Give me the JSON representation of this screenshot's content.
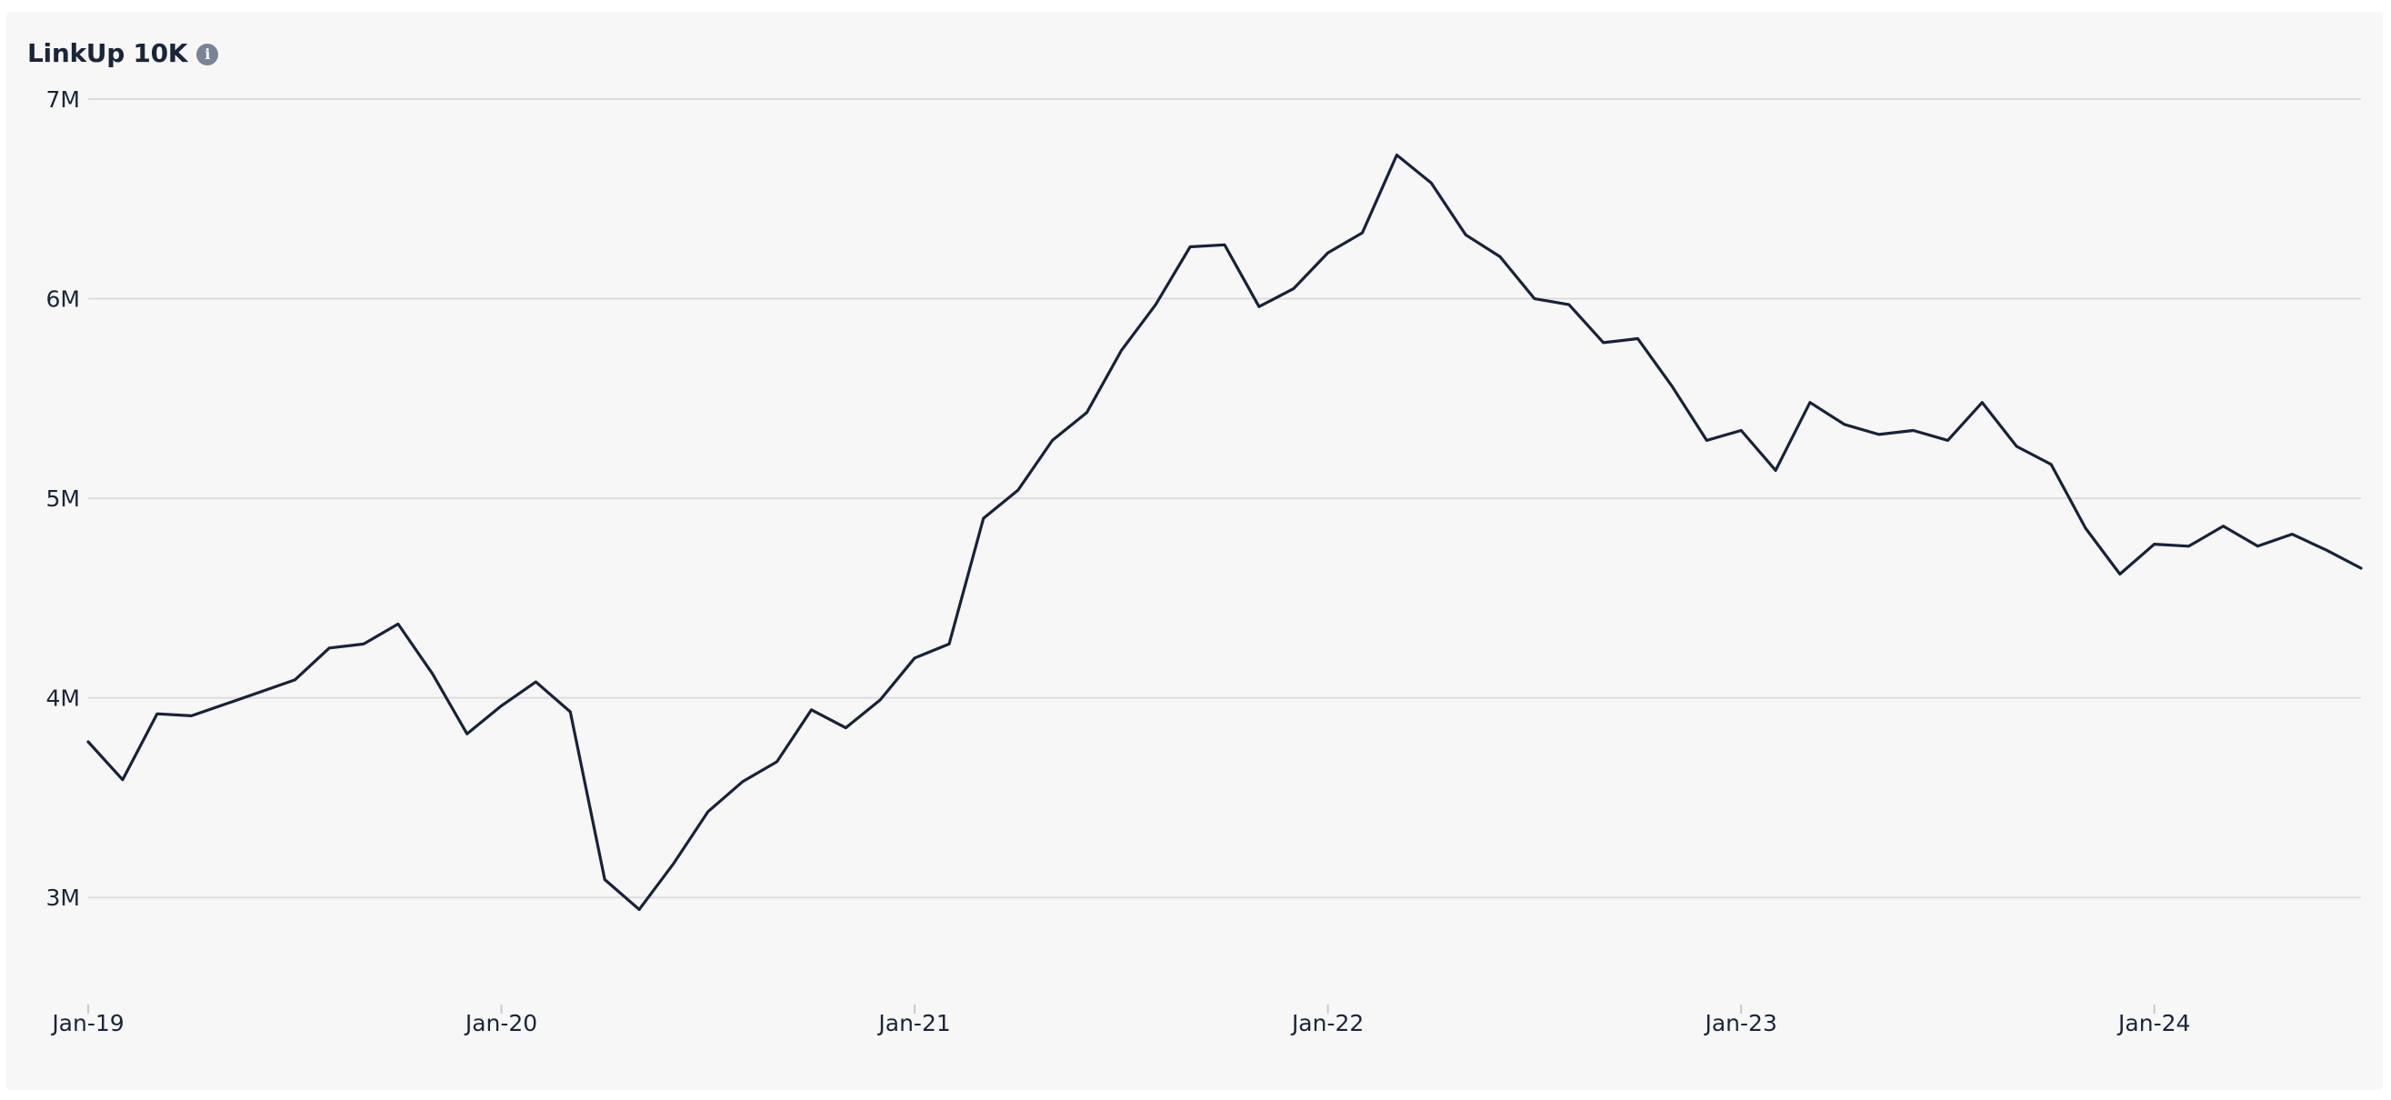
{
  "chart": {
    "title": "LinkUp 10K",
    "info_icon": "info-icon"
  },
  "colors": {
    "line": "#17223a",
    "grid": "#dcdcdf",
    "background": "#f7f7f8"
  },
  "chart_data": {
    "type": "line",
    "title": "LinkUp 10K",
    "xlabel": "",
    "ylabel": "",
    "ylim": [
      2.5,
      7.0
    ],
    "xlim": [
      "2019-01",
      "2024-07"
    ],
    "yticks": [
      {
        "value": 3,
        "label": "3M"
      },
      {
        "value": 4,
        "label": "4M"
      },
      {
        "value": 5,
        "label": "5M"
      },
      {
        "value": 6,
        "label": "6M"
      },
      {
        "value": 7,
        "label": "7M"
      }
    ],
    "xticks": [
      {
        "value": "2019-01",
        "label": "Jan-19"
      },
      {
        "value": "2020-01",
        "label": "Jan-20"
      },
      {
        "value": "2021-01",
        "label": "Jan-21"
      },
      {
        "value": "2022-01",
        "label": "Jan-22"
      },
      {
        "value": "2023-01",
        "label": "Jan-23"
      },
      {
        "value": "2024-01",
        "label": "Jan-24"
      }
    ],
    "grid": true,
    "legend": "none",
    "series": [
      {
        "x": [
          "2019-01",
          "2019-02",
          "2019-03",
          "2019-04",
          "2019-05",
          "2019-06",
          "2019-07",
          "2019-08",
          "2019-09",
          "2019-10",
          "2019-11",
          "2019-12",
          "2020-01",
          "2020-02",
          "2020-03",
          "2020-04",
          "2020-05",
          "2020-06",
          "2020-07",
          "2020-08",
          "2020-09",
          "2020-10",
          "2020-11",
          "2020-12",
          "2021-01",
          "2021-02",
          "2021-03",
          "2021-04",
          "2021-05",
          "2021-06",
          "2021-07",
          "2021-08",
          "2021-09",
          "2021-10",
          "2021-11",
          "2021-12",
          "2022-01",
          "2022-02",
          "2022-03",
          "2022-04",
          "2022-05",
          "2022-06",
          "2022-07",
          "2022-08",
          "2022-09",
          "2022-10",
          "2022-11",
          "2022-12",
          "2023-01",
          "2023-02",
          "2023-03",
          "2023-04",
          "2023-05",
          "2023-06",
          "2023-07",
          "2023-08",
          "2023-09",
          "2023-10",
          "2023-11",
          "2023-12",
          "2024-01",
          "2024-02",
          "2024-03",
          "2024-04",
          "2024-05",
          "2024-06",
          "2024-07"
        ],
        "values": [
          3.78,
          3.59,
          3.92,
          3.91,
          3.97,
          4.03,
          4.09,
          4.25,
          4.27,
          4.37,
          4.12,
          3.82,
          3.96,
          4.08,
          3.93,
          3.09,
          2.94,
          3.17,
          3.43,
          3.58,
          3.68,
          3.94,
          3.85,
          3.99,
          4.2,
          4.27,
          4.9,
          5.04,
          5.29,
          5.43,
          5.74,
          5.97,
          6.26,
          6.27,
          5.96,
          6.05,
          6.23,
          6.33,
          6.72,
          6.58,
          6.32,
          6.21,
          6.0,
          5.97,
          5.78,
          5.8,
          5.56,
          5.29,
          5.34,
          5.14,
          5.48,
          5.37,
          5.32,
          5.34,
          5.29,
          5.48,
          5.26,
          5.17,
          4.85,
          4.62,
          4.77,
          4.76,
          4.86,
          4.76,
          4.82,
          4.74,
          4.65
        ]
      }
    ]
  }
}
